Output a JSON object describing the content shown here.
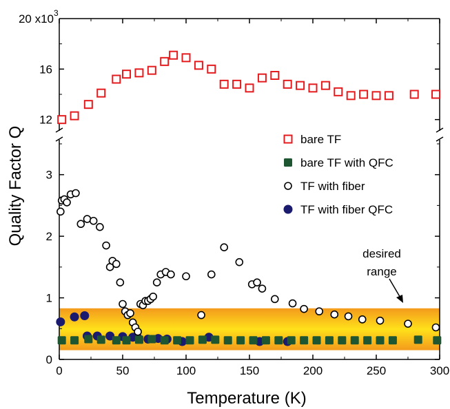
{
  "chart_data": {
    "type": "scatter",
    "title": "",
    "xlabel": "Temperature (K)",
    "ylabel": "Quality Factor Q",
    "xlim": [
      0,
      300
    ],
    "x_ticks": [
      "0",
      "50",
      "100",
      "150",
      "200",
      "250",
      "300"
    ],
    "y_axis_broken": true,
    "y_upper_panel": {
      "ylim": [
        11000,
        20000
      ],
      "ticks": [
        "12",
        "16"
      ],
      "top_tick": "20 x10",
      "top_tick_exponent": "3"
    },
    "y_lower_panel": {
      "ylim": [
        0,
        3.6
      ],
      "ticks": [
        "0",
        "1",
        "2",
        "3"
      ]
    },
    "band": {
      "ymin": 0.15,
      "ymax": 0.83,
      "colors": [
        "#f39a1c",
        "#ffe11a"
      ]
    },
    "annotation": {
      "lines": [
        "desired",
        "range"
      ]
    },
    "legend_position": "right",
    "series": [
      {
        "name": "bare TF",
        "marker": "open-square",
        "color": "#e41a1c",
        "panel": "upper",
        "x": [
          2,
          12,
          23,
          33,
          45,
          53,
          63,
          73,
          83,
          90,
          100,
          110,
          120,
          130,
          140,
          150,
          160,
          170,
          180,
          190,
          200,
          210,
          220,
          230,
          240,
          250,
          260,
          280,
          297
        ],
        "y": [
          12000,
          12300,
          13200,
          14100,
          15200,
          15600,
          15700,
          15900,
          16600,
          17100,
          16900,
          16300,
          16000,
          14800,
          14800,
          14500,
          15300,
          15500,
          14800,
          14700,
          14500,
          14700,
          14200,
          13900,
          14000,
          13900,
          13900,
          14000,
          14000
        ]
      },
      {
        "name": "bare TF with QFC",
        "marker": "filled-square",
        "color": "#1e5631",
        "panel": "lower",
        "x": [
          2,
          12,
          23,
          33,
          45,
          53,
          63,
          73,
          83,
          93,
          103,
          113,
          123,
          133,
          143,
          153,
          163,
          173,
          183,
          193,
          203,
          213,
          223,
          233,
          243,
          253,
          263,
          283,
          298
        ],
        "y": [
          0.31,
          0.31,
          0.33,
          0.32,
          0.31,
          0.31,
          0.32,
          0.33,
          0.31,
          0.31,
          0.31,
          0.32,
          0.32,
          0.31,
          0.31,
          0.31,
          0.31,
          0.31,
          0.31,
          0.31,
          0.31,
          0.31,
          0.31,
          0.31,
          0.31,
          0.31,
          0.31,
          0.32,
          0.31
        ]
      },
      {
        "name": "TF with fiber",
        "marker": "open-circle",
        "color": "#000000",
        "panel": "lower",
        "x": [
          1,
          2,
          4,
          6,
          9,
          13,
          17,
          22,
          27,
          32,
          37,
          40,
          42,
          45,
          48,
          50,
          52,
          54,
          56,
          58,
          60,
          62,
          64,
          66,
          68,
          70,
          72,
          74,
          77,
          80,
          84,
          88,
          100,
          112,
          120,
          130,
          142,
          152,
          156,
          160,
          170,
          184,
          193,
          205,
          217,
          228,
          239,
          253,
          275,
          297
        ],
        "y": [
          2.4,
          2.58,
          2.6,
          2.55,
          2.68,
          2.7,
          2.2,
          2.28,
          2.25,
          2.15,
          1.85,
          1.5,
          1.6,
          1.55,
          1.25,
          0.9,
          0.78,
          0.72,
          0.75,
          0.6,
          0.52,
          0.45,
          0.9,
          0.88,
          0.95,
          0.95,
          0.98,
          1.02,
          1.25,
          1.38,
          1.42,
          1.38,
          1.35,
          0.72,
          1.38,
          1.82,
          1.58,
          1.22,
          1.25,
          1.15,
          0.98,
          0.91,
          0.82,
          0.78,
          0.73,
          0.7,
          0.65,
          0.63,
          0.58,
          0.52
        ]
      },
      {
        "name": "TF with fiber QFC",
        "marker": "filled-circle",
        "color": "#1a1a6e",
        "panel": "lower",
        "x": [
          1,
          12,
          20,
          22,
          30,
          40,
          50,
          58,
          62,
          70,
          78,
          85,
          97,
          118,
          158,
          180
        ],
        "y": [
          0.61,
          0.69,
          0.71,
          0.38,
          0.38,
          0.38,
          0.37,
          0.36,
          0.35,
          0.33,
          0.34,
          0.33,
          0.29,
          0.36,
          0.29,
          0.29
        ]
      }
    ]
  }
}
